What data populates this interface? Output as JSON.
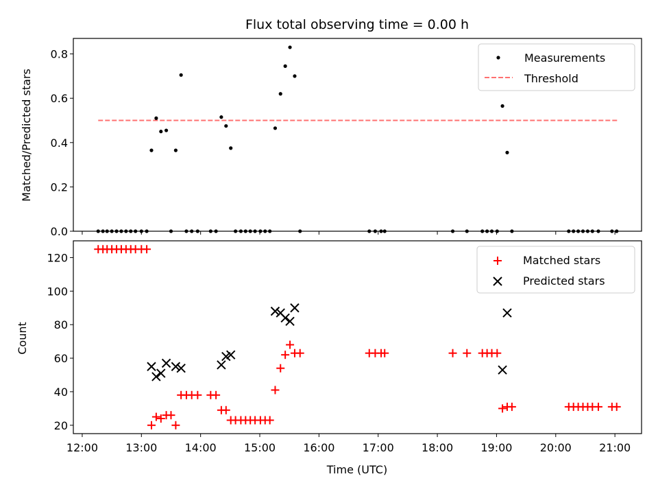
{
  "chart_data": [
    {
      "type": "scatter",
      "title": "Flux total observing time = 0.00 h",
      "xlabel": "",
      "ylabel": "Matched/Predicted stars",
      "xlim": [
        11.85,
        21.45
      ],
      "ylim": [
        0,
        0.87
      ],
      "yticks": [
        0.0,
        0.2,
        0.4,
        0.6,
        0.8
      ],
      "ytick_labels": [
        "0.0",
        "0.2",
        "0.4",
        "0.6",
        "0.8"
      ],
      "legend_position": "top-right",
      "series": [
        {
          "name": "Measurements",
          "kind": "scatter",
          "color": "#000000",
          "marker": "dot",
          "points": [
            [
              12.27,
              0
            ],
            [
              12.35,
              0
            ],
            [
              12.42,
              0
            ],
            [
              12.5,
              0
            ],
            [
              12.58,
              0
            ],
            [
              12.66,
              0
            ],
            [
              12.74,
              0
            ],
            [
              12.82,
              0
            ],
            [
              12.9,
              0
            ],
            [
              13.0,
              0
            ],
            [
              13.09,
              0
            ],
            [
              13.17,
              0.365
            ],
            [
              13.25,
              0.51
            ],
            [
              13.33,
              0.45
            ],
            [
              13.42,
              0.455
            ],
            [
              13.5,
              0
            ],
            [
              13.58,
              0.365
            ],
            [
              13.67,
              0.705
            ],
            [
              13.76,
              0
            ],
            [
              13.85,
              0
            ],
            [
              13.95,
              0
            ],
            [
              14.17,
              0
            ],
            [
              14.26,
              0
            ],
            [
              14.35,
              0.515
            ],
            [
              14.43,
              0.475
            ],
            [
              14.51,
              0.375
            ],
            [
              14.59,
              0
            ],
            [
              14.68,
              0
            ],
            [
              14.76,
              0
            ],
            [
              14.84,
              0
            ],
            [
              14.92,
              0
            ],
            [
              15.01,
              0
            ],
            [
              15.09,
              0
            ],
            [
              15.17,
              0
            ],
            [
              15.26,
              0.465
            ],
            [
              15.35,
              0.62
            ],
            [
              15.43,
              0.745
            ],
            [
              15.51,
              0.83
            ],
            [
              15.59,
              0.7
            ],
            [
              15.68,
              0
            ],
            [
              16.85,
              0
            ],
            [
              16.95,
              0
            ],
            [
              17.05,
              0
            ],
            [
              17.11,
              0
            ],
            [
              18.26,
              0
            ],
            [
              18.5,
              0
            ],
            [
              18.76,
              0
            ],
            [
              18.84,
              0
            ],
            [
              18.92,
              0
            ],
            [
              19.01,
              0
            ],
            [
              19.1,
              0.565
            ],
            [
              19.18,
              0.355
            ],
            [
              19.26,
              0
            ],
            [
              20.22,
              0
            ],
            [
              20.3,
              0
            ],
            [
              20.38,
              0
            ],
            [
              20.46,
              0
            ],
            [
              20.54,
              0
            ],
            [
              20.62,
              0
            ],
            [
              20.72,
              0
            ],
            [
              20.95,
              0
            ],
            [
              21.03,
              0
            ]
          ]
        },
        {
          "name": "Threshold",
          "kind": "dashed-line",
          "color": "#ff7070",
          "points": [
            [
              12.27,
              0.5
            ],
            [
              21.05,
              0.5
            ]
          ]
        }
      ]
    },
    {
      "type": "scatter",
      "title": "",
      "xlabel": "Time (UTC)",
      "ylabel": "Count",
      "xlim": [
        11.85,
        21.45
      ],
      "ylim": [
        15,
        130
      ],
      "xticks": [
        12,
        13,
        14,
        15,
        16,
        17,
        18,
        19,
        20,
        21
      ],
      "xtick_labels": [
        "12:00",
        "13:00",
        "14:00",
        "15:00",
        "16:00",
        "17:00",
        "18:00",
        "19:00",
        "20:00",
        "21:00"
      ],
      "yticks": [
        20,
        40,
        60,
        80,
        100,
        120
      ],
      "ytick_labels": [
        "20",
        "40",
        "60",
        "80",
        "100",
        "120"
      ],
      "legend_position": "top-right",
      "series": [
        {
          "name": "Matched stars",
          "kind": "scatter",
          "color": "#ff0000",
          "marker": "plus",
          "points": [
            [
              12.27,
              125
            ],
            [
              12.35,
              125
            ],
            [
              12.42,
              125
            ],
            [
              12.5,
              125
            ],
            [
              12.58,
              125
            ],
            [
              12.66,
              125
            ],
            [
              12.74,
              125
            ],
            [
              12.82,
              125
            ],
            [
              12.9,
              125
            ],
            [
              13.0,
              125
            ],
            [
              13.09,
              125
            ],
            [
              13.17,
              20
            ],
            [
              13.25,
              25
            ],
            [
              13.33,
              24
            ],
            [
              13.42,
              26
            ],
            [
              13.5,
              26
            ],
            [
              13.58,
              20
            ],
            [
              13.67,
              38
            ],
            [
              13.76,
              38
            ],
            [
              13.85,
              38
            ],
            [
              13.95,
              38
            ],
            [
              14.17,
              38
            ],
            [
              14.26,
              38
            ],
            [
              14.35,
              29
            ],
            [
              14.43,
              29
            ],
            [
              14.51,
              23
            ],
            [
              14.59,
              23
            ],
            [
              14.68,
              23
            ],
            [
              14.76,
              23
            ],
            [
              14.84,
              23
            ],
            [
              14.92,
              23
            ],
            [
              15.01,
              23
            ],
            [
              15.09,
              23
            ],
            [
              15.17,
              23
            ],
            [
              15.26,
              41
            ],
            [
              15.35,
              54
            ],
            [
              15.43,
              62
            ],
            [
              15.51,
              68
            ],
            [
              15.59,
              63
            ],
            [
              15.68,
              63
            ],
            [
              16.85,
              63
            ],
            [
              16.95,
              63
            ],
            [
              17.05,
              63
            ],
            [
              17.11,
              63
            ],
            [
              18.26,
              63
            ],
            [
              18.5,
              63
            ],
            [
              18.76,
              63
            ],
            [
              18.84,
              63
            ],
            [
              18.92,
              63
            ],
            [
              19.01,
              63
            ],
            [
              19.1,
              30
            ],
            [
              19.18,
              31
            ],
            [
              19.26,
              31
            ],
            [
              20.22,
              31
            ],
            [
              20.3,
              31
            ],
            [
              20.38,
              31
            ],
            [
              20.46,
              31
            ],
            [
              20.54,
              31
            ],
            [
              20.62,
              31
            ],
            [
              20.72,
              31
            ],
            [
              20.95,
              31
            ],
            [
              21.03,
              31
            ]
          ]
        },
        {
          "name": "Predicted stars",
          "kind": "scatter",
          "color": "#000000",
          "marker": "x",
          "points": [
            [
              13.17,
              55
            ],
            [
              13.25,
              49
            ],
            [
              13.33,
              51
            ],
            [
              13.42,
              57
            ],
            [
              13.58,
              55
            ],
            [
              13.67,
              54
            ],
            [
              14.35,
              56
            ],
            [
              14.43,
              61
            ],
            [
              14.51,
              62
            ],
            [
              15.26,
              88
            ],
            [
              15.35,
              87
            ],
            [
              15.43,
              84
            ],
            [
              15.51,
              82
            ],
            [
              15.59,
              90
            ],
            [
              19.1,
              53
            ],
            [
              19.18,
              87
            ]
          ]
        }
      ]
    }
  ]
}
